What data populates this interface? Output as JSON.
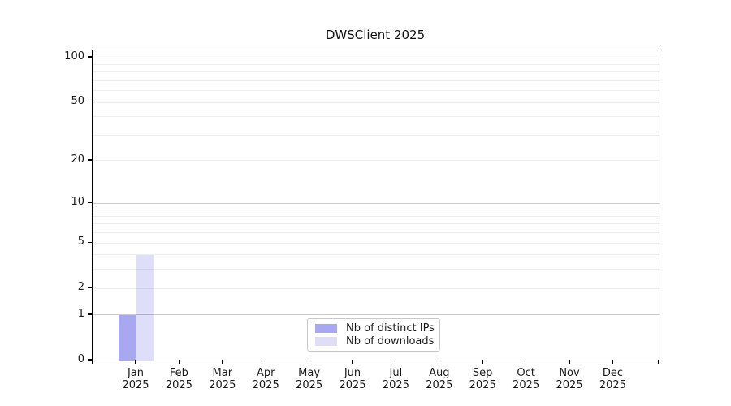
{
  "chart_data": {
    "type": "bar",
    "title": "DWSClient 2025",
    "categories": [
      [
        "Jan",
        "2025"
      ],
      [
        "Feb",
        "2025"
      ],
      [
        "Mar",
        "2025"
      ],
      [
        "Apr",
        "2025"
      ],
      [
        "May",
        "2025"
      ],
      [
        "Jun",
        "2025"
      ],
      [
        "Jul",
        "2025"
      ],
      [
        "Aug",
        "2025"
      ],
      [
        "Sep",
        "2025"
      ],
      [
        "Oct",
        "2025"
      ],
      [
        "Nov",
        "2025"
      ],
      [
        "Dec",
        "2025"
      ]
    ],
    "series": [
      {
        "name": "Nb of distinct IPs",
        "color": "#a8a8f0",
        "values": [
          1,
          0,
          0,
          0,
          0,
          0,
          0,
          0,
          0,
          0,
          0,
          0
        ]
      },
      {
        "name": "Nb of downloads",
        "color": "#dedef8",
        "values": [
          4,
          0,
          0,
          0,
          0,
          0,
          0,
          0,
          0,
          0,
          0,
          0
        ]
      }
    ],
    "yscale": "log1p",
    "ylim": [
      0,
      112
    ],
    "y_ticks": [
      0,
      1,
      2,
      5,
      10,
      20,
      50,
      100
    ],
    "y_major_gridlines": [
      1,
      10,
      100
    ],
    "y_minor_gridlines": [
      2,
      3,
      4,
      5,
      6,
      7,
      8,
      9,
      20,
      30,
      40,
      50,
      60,
      70,
      80,
      90
    ],
    "xlabel": "",
    "ylabel": "",
    "grid": "horizontal",
    "legend_position": "lower-center"
  }
}
